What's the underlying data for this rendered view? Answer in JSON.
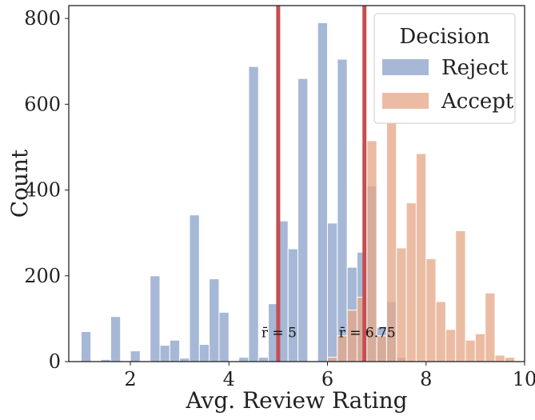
{
  "chart_data": {
    "type": "histogram",
    "xlabel": "Avg. Review Rating",
    "ylabel": "Count",
    "xlim": [
      0.75,
      10
    ],
    "ylim": [
      0,
      830
    ],
    "xticks": [
      2,
      4,
      6,
      8,
      10
    ],
    "yticks": [
      0,
      200,
      400,
      600,
      800
    ],
    "bin_start": 1.0,
    "bin_width": 0.2,
    "legend": {
      "title": "Decision",
      "position": "top-right"
    },
    "series": [
      {
        "name": "Reject",
        "color": "#8DA4CB",
        "values": [
          70,
          0,
          5,
          105,
          0,
          25,
          0,
          200,
          38,
          50,
          8,
          342,
          40,
          193,
          115,
          0,
          10,
          688,
          10,
          135,
          328,
          263,
          660,
          0,
          790,
          323,
          705,
          220,
          255,
          410,
          80,
          140,
          10,
          0,
          0,
          0,
          0,
          0,
          0,
          0,
          0,
          0,
          0,
          0,
          0
        ]
      },
      {
        "name": "Accept",
        "color": "#E6A989",
        "values": [
          0,
          0,
          0,
          0,
          0,
          0,
          0,
          0,
          0,
          0,
          0,
          0,
          0,
          0,
          0,
          0,
          0,
          0,
          0,
          0,
          0,
          0,
          0,
          0,
          0,
          10,
          60,
          120,
          150,
          515,
          60,
          563,
          265,
          370,
          485,
          240,
          140,
          75,
          305,
          50,
          65,
          160,
          15,
          10,
          0
        ]
      }
    ],
    "vlines": [
      {
        "x": 5.0,
        "color": "#C44E52",
        "label": "r̄ = 5"
      },
      {
        "x": 6.75,
        "color": "#C44E52",
        "label": "r̄ = 6.75"
      }
    ]
  }
}
